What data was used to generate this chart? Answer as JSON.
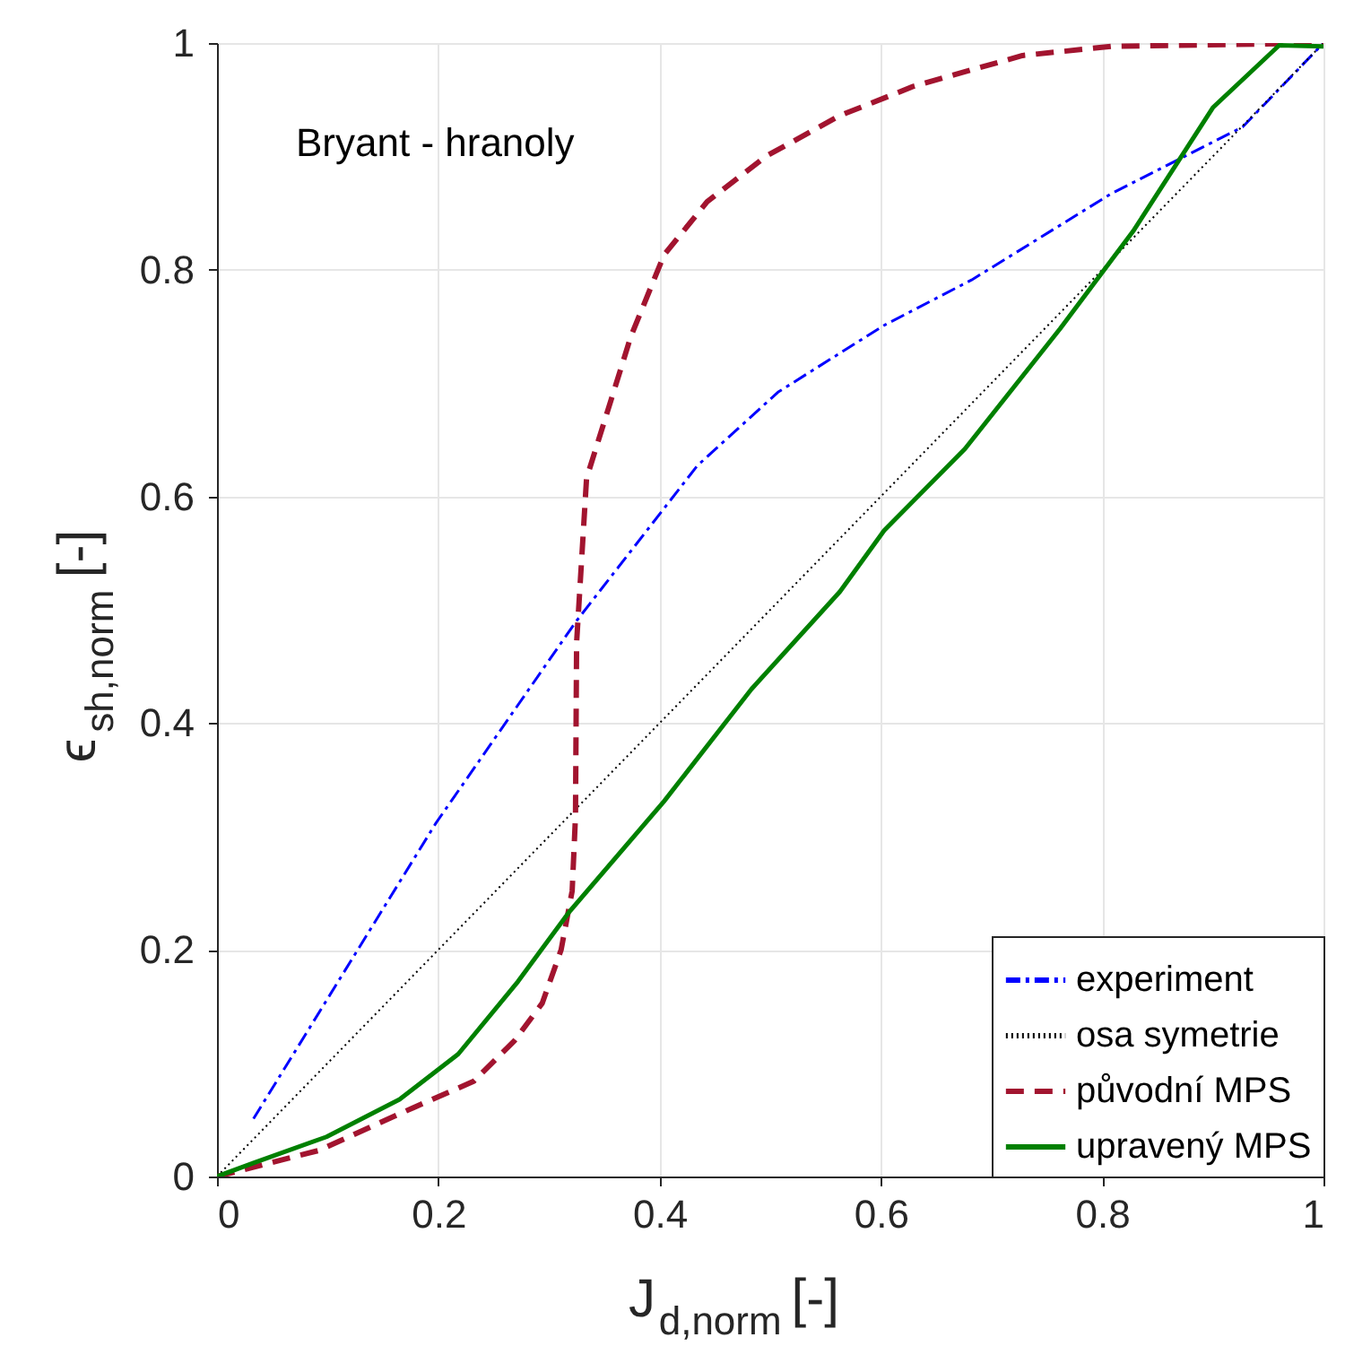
{
  "chart_data": {
    "type": "line",
    "xlabel": "J$_{d,norm}$ [-]",
    "ylabel": "ϵ$_{sh,norm}$ [-]",
    "annotations": [
      "Bryant - hranoly"
    ],
    "xlim": [
      0,
      1
    ],
    "ylim": [
      0,
      1
    ],
    "xticks": [
      0,
      0.2,
      0.4,
      0.6,
      0.8,
      1
    ],
    "yticks": [
      0,
      0.2,
      0.4,
      0.6,
      0.8,
      1
    ],
    "grid": true,
    "legend": "bottom right",
    "series": [
      {
        "name": "experiment",
        "color": "#0000ff",
        "line_style": "dashdot",
        "x": [
          0.033,
          0.198,
          0.324,
          0.434,
          0.507,
          0.603,
          0.682,
          0.808,
          0.927,
          1
        ],
        "values": [
          0.051,
          0.312,
          0.489,
          0.627,
          0.692,
          0.751,
          0.791,
          0.867,
          0.926,
          1
        ]
      },
      {
        "name": "osa symetrie",
        "color": "#000000",
        "line_style": "dotted",
        "x": [
          0,
          1
        ],
        "values": [
          0,
          1
        ]
      },
      {
        "name": "původní MPS",
        "color": "#a2142f",
        "line_style": "dashed",
        "x": [
          0,
          0.092,
          0.178,
          0.232,
          0.269,
          0.294,
          0.311,
          0.321,
          0.324,
          0.325,
          0.334,
          0.351,
          0.374,
          0.404,
          0.443,
          0.496,
          0.563,
          0.63,
          0.728,
          0.808,
          1
        ],
        "values": [
          0,
          0.023,
          0.061,
          0.084,
          0.12,
          0.153,
          0.2,
          0.252,
          0.318,
          0.471,
          0.616,
          0.669,
          0.741,
          0.813,
          0.86,
          0.9,
          0.936,
          0.962,
          0.989,
          0.997,
          1
        ]
      },
      {
        "name": "upravený MPS",
        "color": "#008000",
        "line_style": "solid",
        "x": [
          0,
          0.033,
          0.099,
          0.165,
          0.218,
          0.272,
          0.318,
          0.404,
          0.483,
          0.563,
          0.603,
          0.676,
          0.762,
          0.828,
          0.9,
          0.96,
          1
        ],
        "values": [
          0,
          0.012,
          0.035,
          0.068,
          0.108,
          0.172,
          0.233,
          0.331,
          0.43,
          0.516,
          0.57,
          0.642,
          0.748,
          0.834,
          0.943,
          0.998,
          0.997
        ]
      }
    ]
  }
}
